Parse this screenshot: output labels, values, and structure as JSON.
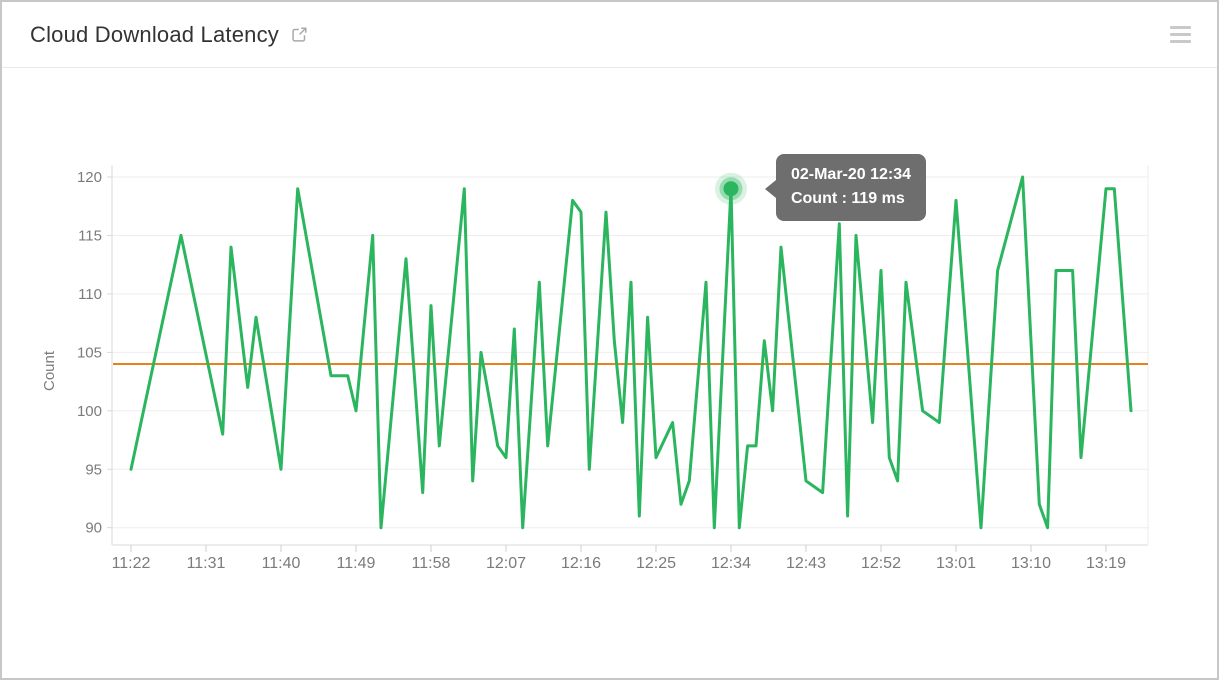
{
  "header": {
    "title": "Cloud Download Latency",
    "external_link_icon": "open-in-new-window",
    "menu_icon": "hamburger-menu"
  },
  "tooltip": {
    "line1": "02-Mar-20 12:34",
    "line2": "Count : 119 ms",
    "bg_color": "#6e6e6e"
  },
  "colors": {
    "series_green": "#2cb55f",
    "average_orange": "#e8811c",
    "grid": "#ededed",
    "axis": "#d9d9d9",
    "tick_text": "#7b7b7b",
    "title_text": "#333333",
    "icon_gray": "#c9c9c9"
  },
  "chart_data": {
    "type": "line",
    "title": "Cloud Download Latency",
    "xlabel": "",
    "ylabel": "Count",
    "unit": "ms",
    "grid": "horizontal-only",
    "legend_position": "none",
    "y_ticks": [
      120,
      115,
      110,
      105,
      100,
      95,
      90
    ],
    "ylim": [
      88.5,
      121.3
    ],
    "x_start_label": "11:22",
    "x_tick_interval_minutes": 9,
    "x_ticks": [
      "11:22",
      "11:31",
      "11:40",
      "11:49",
      "11:58",
      "12:07",
      "12:16",
      "12:25",
      "12:34",
      "12:43",
      "12:52",
      "13:01",
      "13:10",
      "13:19"
    ],
    "x_axis_span_minutes": [
      -2.3,
      122
    ],
    "average_line": {
      "label": "average",
      "value": 104,
      "color": "#e8811c"
    },
    "highlight_point": {
      "t_minutes": 72,
      "date_label": "02-Mar-20",
      "time_label": "12:34",
      "value": 119
    },
    "series": [
      {
        "name": "Count",
        "color": "#2cb55f",
        "points_format": "[minutes_after_11:22, count_ms]",
        "points": [
          [
            0,
            95
          ],
          [
            6,
            115
          ],
          [
            11,
            98
          ],
          [
            12,
            114
          ],
          [
            14,
            102
          ],
          [
            15,
            108
          ],
          [
            18,
            95
          ],
          [
            20,
            119
          ],
          [
            24,
            103
          ],
          [
            26,
            103
          ],
          [
            27,
            100
          ],
          [
            29,
            115
          ],
          [
            30,
            90
          ],
          [
            33,
            113
          ],
          [
            35,
            93
          ],
          [
            36,
            109
          ],
          [
            37,
            97
          ],
          [
            40,
            119
          ],
          [
            41,
            94
          ],
          [
            42,
            105
          ],
          [
            44,
            97
          ],
          [
            45,
            96
          ],
          [
            46,
            107
          ],
          [
            47,
            90
          ],
          [
            49,
            111
          ],
          [
            50,
            97
          ],
          [
            53,
            118
          ],
          [
            54,
            117
          ],
          [
            55,
            95
          ],
          [
            57,
            117
          ],
          [
            58,
            106
          ],
          [
            59,
            99
          ],
          [
            60,
            111
          ],
          [
            61,
            91
          ],
          [
            62,
            108
          ],
          [
            63,
            96
          ],
          [
            65,
            99
          ],
          [
            66,
            92
          ],
          [
            67,
            94
          ],
          [
            69,
            111
          ],
          [
            70,
            90
          ],
          [
            72,
            119
          ],
          [
            73,
            90
          ],
          [
            74,
            97
          ],
          [
            75,
            97
          ],
          [
            76,
            106
          ],
          [
            77,
            100
          ],
          [
            78,
            114
          ],
          [
            81,
            94
          ],
          [
            83,
            93
          ],
          [
            85,
            116
          ],
          [
            86,
            91
          ],
          [
            87,
            115
          ],
          [
            89,
            99
          ],
          [
            90,
            112
          ],
          [
            91,
            96
          ],
          [
            92,
            94
          ],
          [
            93,
            111
          ],
          [
            95,
            100
          ],
          [
            97,
            99
          ],
          [
            99,
            118
          ],
          [
            102,
            90
          ],
          [
            104,
            112
          ],
          [
            107,
            120
          ],
          [
            109,
            92
          ],
          [
            110,
            90
          ],
          [
            111,
            112
          ],
          [
            113,
            112
          ],
          [
            114,
            96
          ],
          [
            117,
            119
          ],
          [
            118,
            119
          ],
          [
            120,
            100
          ]
        ]
      }
    ]
  }
}
